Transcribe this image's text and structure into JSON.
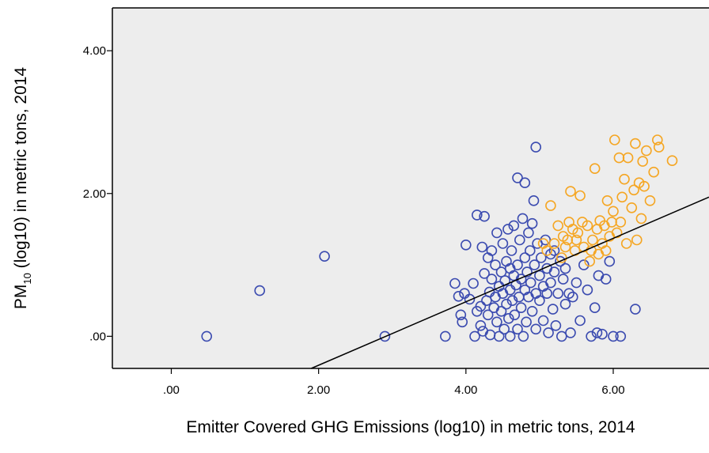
{
  "chart_data": {
    "type": "scatter",
    "title": "",
    "xlabel": "Emitter Covered GHG Emissions (log10) in metric tons, 2014",
    "ylabel_main": "PM",
    "ylabel_sub": "10",
    "ylabel_rest": " (log10) in metric tons, 2014",
    "xlim": [
      -0.8,
      7.3
    ],
    "ylim": [
      -0.45,
      4.6
    ],
    "x_ticks": [
      {
        "value": 0,
        "label": ".00"
      },
      {
        "value": 2,
        "label": "2.00"
      },
      {
        "value": 4,
        "label": "4.00"
      },
      {
        "value": 6,
        "label": "6.00"
      }
    ],
    "y_ticks": [
      {
        "value": 0,
        "label": ".00"
      },
      {
        "value": 2,
        "label": "2.00"
      },
      {
        "value": 4,
        "label": "4.00"
      }
    ],
    "grid": false,
    "plot_background": "#ededed",
    "fit_line": {
      "from": [
        1.9,
        -0.45
      ],
      "to": [
        7.3,
        1.95
      ],
      "color": "#000000"
    },
    "series": [
      {
        "color": "#3b4bb0",
        "points": [
          [
            0.48,
            0.0
          ],
          [
            1.2,
            0.64
          ],
          [
            2.08,
            1.12
          ],
          [
            2.9,
            0.0
          ],
          [
            3.72,
            0.0
          ],
          [
            3.85,
            0.74
          ],
          [
            3.9,
            0.56
          ],
          [
            3.93,
            0.3
          ],
          [
            3.95,
            0.2
          ],
          [
            3.98,
            0.6
          ],
          [
            4.0,
            1.28
          ],
          [
            4.05,
            0.52
          ],
          [
            4.1,
            0.74
          ],
          [
            4.12,
            0.0
          ],
          [
            4.15,
            0.35
          ],
          [
            4.15,
            1.7
          ],
          [
            4.2,
            0.42
          ],
          [
            4.2,
            0.15
          ],
          [
            4.22,
            1.25
          ],
          [
            4.23,
            0.07
          ],
          [
            4.25,
            0.88
          ],
          [
            4.25,
            1.68
          ],
          [
            4.28,
            0.5
          ],
          [
            4.3,
            1.1
          ],
          [
            4.3,
            0.3
          ],
          [
            4.32,
            0.62
          ],
          [
            4.33,
            0.02
          ],
          [
            4.35,
            0.8
          ],
          [
            4.35,
            1.2
          ],
          [
            4.38,
            0.4
          ],
          [
            4.4,
            1.0
          ],
          [
            4.4,
            0.55
          ],
          [
            4.42,
            0.2
          ],
          [
            4.42,
            1.45
          ],
          [
            4.45,
            0.7
          ],
          [
            4.45,
            0.0
          ],
          [
            4.48,
            0.9
          ],
          [
            4.48,
            0.35
          ],
          [
            4.5,
            1.3
          ],
          [
            4.5,
            0.6
          ],
          [
            4.52,
            0.1
          ],
          [
            4.53,
            0.78
          ],
          [
            4.55,
            1.05
          ],
          [
            4.55,
            0.45
          ],
          [
            4.57,
            1.5
          ],
          [
            4.58,
            0.25
          ],
          [
            4.6,
            0.95
          ],
          [
            4.6,
            0.65
          ],
          [
            4.6,
            0.0
          ],
          [
            4.62,
            1.2
          ],
          [
            4.63,
            0.5
          ],
          [
            4.65,
            0.85
          ],
          [
            4.65,
            1.55
          ],
          [
            4.66,
            0.3
          ],
          [
            4.68,
            0.72
          ],
          [
            4.7,
            1.0
          ],
          [
            4.7,
            0.1
          ],
          [
            4.7,
            2.22
          ],
          [
            4.72,
            0.55
          ],
          [
            4.73,
            1.35
          ],
          [
            4.75,
            0.8
          ],
          [
            4.75,
            0.4
          ],
          [
            4.77,
            1.65
          ],
          [
            4.78,
            0.0
          ],
          [
            4.8,
            1.1
          ],
          [
            4.8,
            0.65
          ],
          [
            4.8,
            2.15
          ],
          [
            4.82,
            0.2
          ],
          [
            4.83,
            0.9
          ],
          [
            4.85,
            1.45
          ],
          [
            4.85,
            0.55
          ],
          [
            4.87,
            1.2
          ],
          [
            4.88,
            0.75
          ],
          [
            4.9,
            1.58
          ],
          [
            4.9,
            0.35
          ],
          [
            4.92,
            1.9
          ],
          [
            4.93,
            1.0
          ],
          [
            4.95,
            0.6
          ],
          [
            4.95,
            0.1
          ],
          [
            4.95,
            2.65
          ],
          [
            4.97,
            1.3
          ],
          [
            5.0,
            0.85
          ],
          [
            5.0,
            0.5
          ],
          [
            5.02,
            1.1
          ],
          [
            5.05,
            0.7
          ],
          [
            5.05,
            0.22
          ],
          [
            5.08,
            1.35
          ],
          [
            5.1,
            0.95
          ],
          [
            5.1,
            0.6
          ],
          [
            5.12,
            0.05
          ],
          [
            5.15,
            1.15
          ],
          [
            5.15,
            0.75
          ],
          [
            5.18,
            0.38
          ],
          [
            5.2,
            0.9
          ],
          [
            5.2,
            1.2
          ],
          [
            5.22,
            0.15
          ],
          [
            5.25,
            0.6
          ],
          [
            5.28,
            1.05
          ],
          [
            5.3,
            0.0
          ],
          [
            5.32,
            0.8
          ],
          [
            5.35,
            0.45
          ],
          [
            5.35,
            0.95
          ],
          [
            5.4,
            0.6
          ],
          [
            5.42,
            0.05
          ],
          [
            5.45,
            0.55
          ],
          [
            5.5,
            0.75
          ],
          [
            5.55,
            0.22
          ],
          [
            5.6,
            1.0
          ],
          [
            5.65,
            0.65
          ],
          [
            5.7,
            0.0
          ],
          [
            5.75,
            0.4
          ],
          [
            5.78,
            0.05
          ],
          [
            5.8,
            0.85
          ],
          [
            5.85,
            0.03
          ],
          [
            5.9,
            0.8
          ],
          [
            5.95,
            1.05
          ],
          [
            6.0,
            0.0
          ],
          [
            6.1,
            0.0
          ],
          [
            6.3,
            0.38
          ]
        ]
      },
      {
        "color": "#f5a623",
        "points": [
          [
            5.05,
            1.3
          ],
          [
            5.1,
            1.2
          ],
          [
            5.15,
            1.83
          ],
          [
            5.2,
            1.3
          ],
          [
            5.25,
            1.55
          ],
          [
            5.3,
            1.1
          ],
          [
            5.32,
            1.4
          ],
          [
            5.35,
            1.25
          ],
          [
            5.38,
            1.35
          ],
          [
            5.4,
            1.6
          ],
          [
            5.42,
            2.03
          ],
          [
            5.45,
            1.5
          ],
          [
            5.48,
            1.2
          ],
          [
            5.5,
            1.35
          ],
          [
            5.52,
            1.45
          ],
          [
            5.55,
            1.97
          ],
          [
            5.58,
            1.6
          ],
          [
            5.6,
            1.25
          ],
          [
            5.65,
            1.55
          ],
          [
            5.68,
            1.05
          ],
          [
            5.7,
            1.2
          ],
          [
            5.72,
            1.35
          ],
          [
            5.75,
            2.35
          ],
          [
            5.78,
            1.5
          ],
          [
            5.8,
            1.15
          ],
          [
            5.82,
            1.62
          ],
          [
            5.85,
            1.3
          ],
          [
            5.88,
            1.55
          ],
          [
            5.9,
            1.2
          ],
          [
            5.92,
            1.9
          ],
          [
            5.95,
            1.4
          ],
          [
            5.98,
            1.6
          ],
          [
            6.0,
            1.75
          ],
          [
            6.02,
            2.75
          ],
          [
            6.05,
            1.45
          ],
          [
            6.08,
            2.5
          ],
          [
            6.1,
            1.6
          ],
          [
            6.12,
            1.95
          ],
          [
            6.15,
            2.2
          ],
          [
            6.18,
            1.3
          ],
          [
            6.2,
            2.5
          ],
          [
            6.25,
            1.8
          ],
          [
            6.28,
            2.05
          ],
          [
            6.3,
            2.7
          ],
          [
            6.32,
            1.35
          ],
          [
            6.35,
            2.15
          ],
          [
            6.38,
            1.65
          ],
          [
            6.4,
            2.45
          ],
          [
            6.42,
            2.1
          ],
          [
            6.45,
            2.6
          ],
          [
            6.5,
            1.9
          ],
          [
            6.55,
            2.3
          ],
          [
            6.6,
            2.75
          ],
          [
            6.62,
            2.65
          ],
          [
            6.8,
            2.46
          ]
        ]
      }
    ]
  }
}
